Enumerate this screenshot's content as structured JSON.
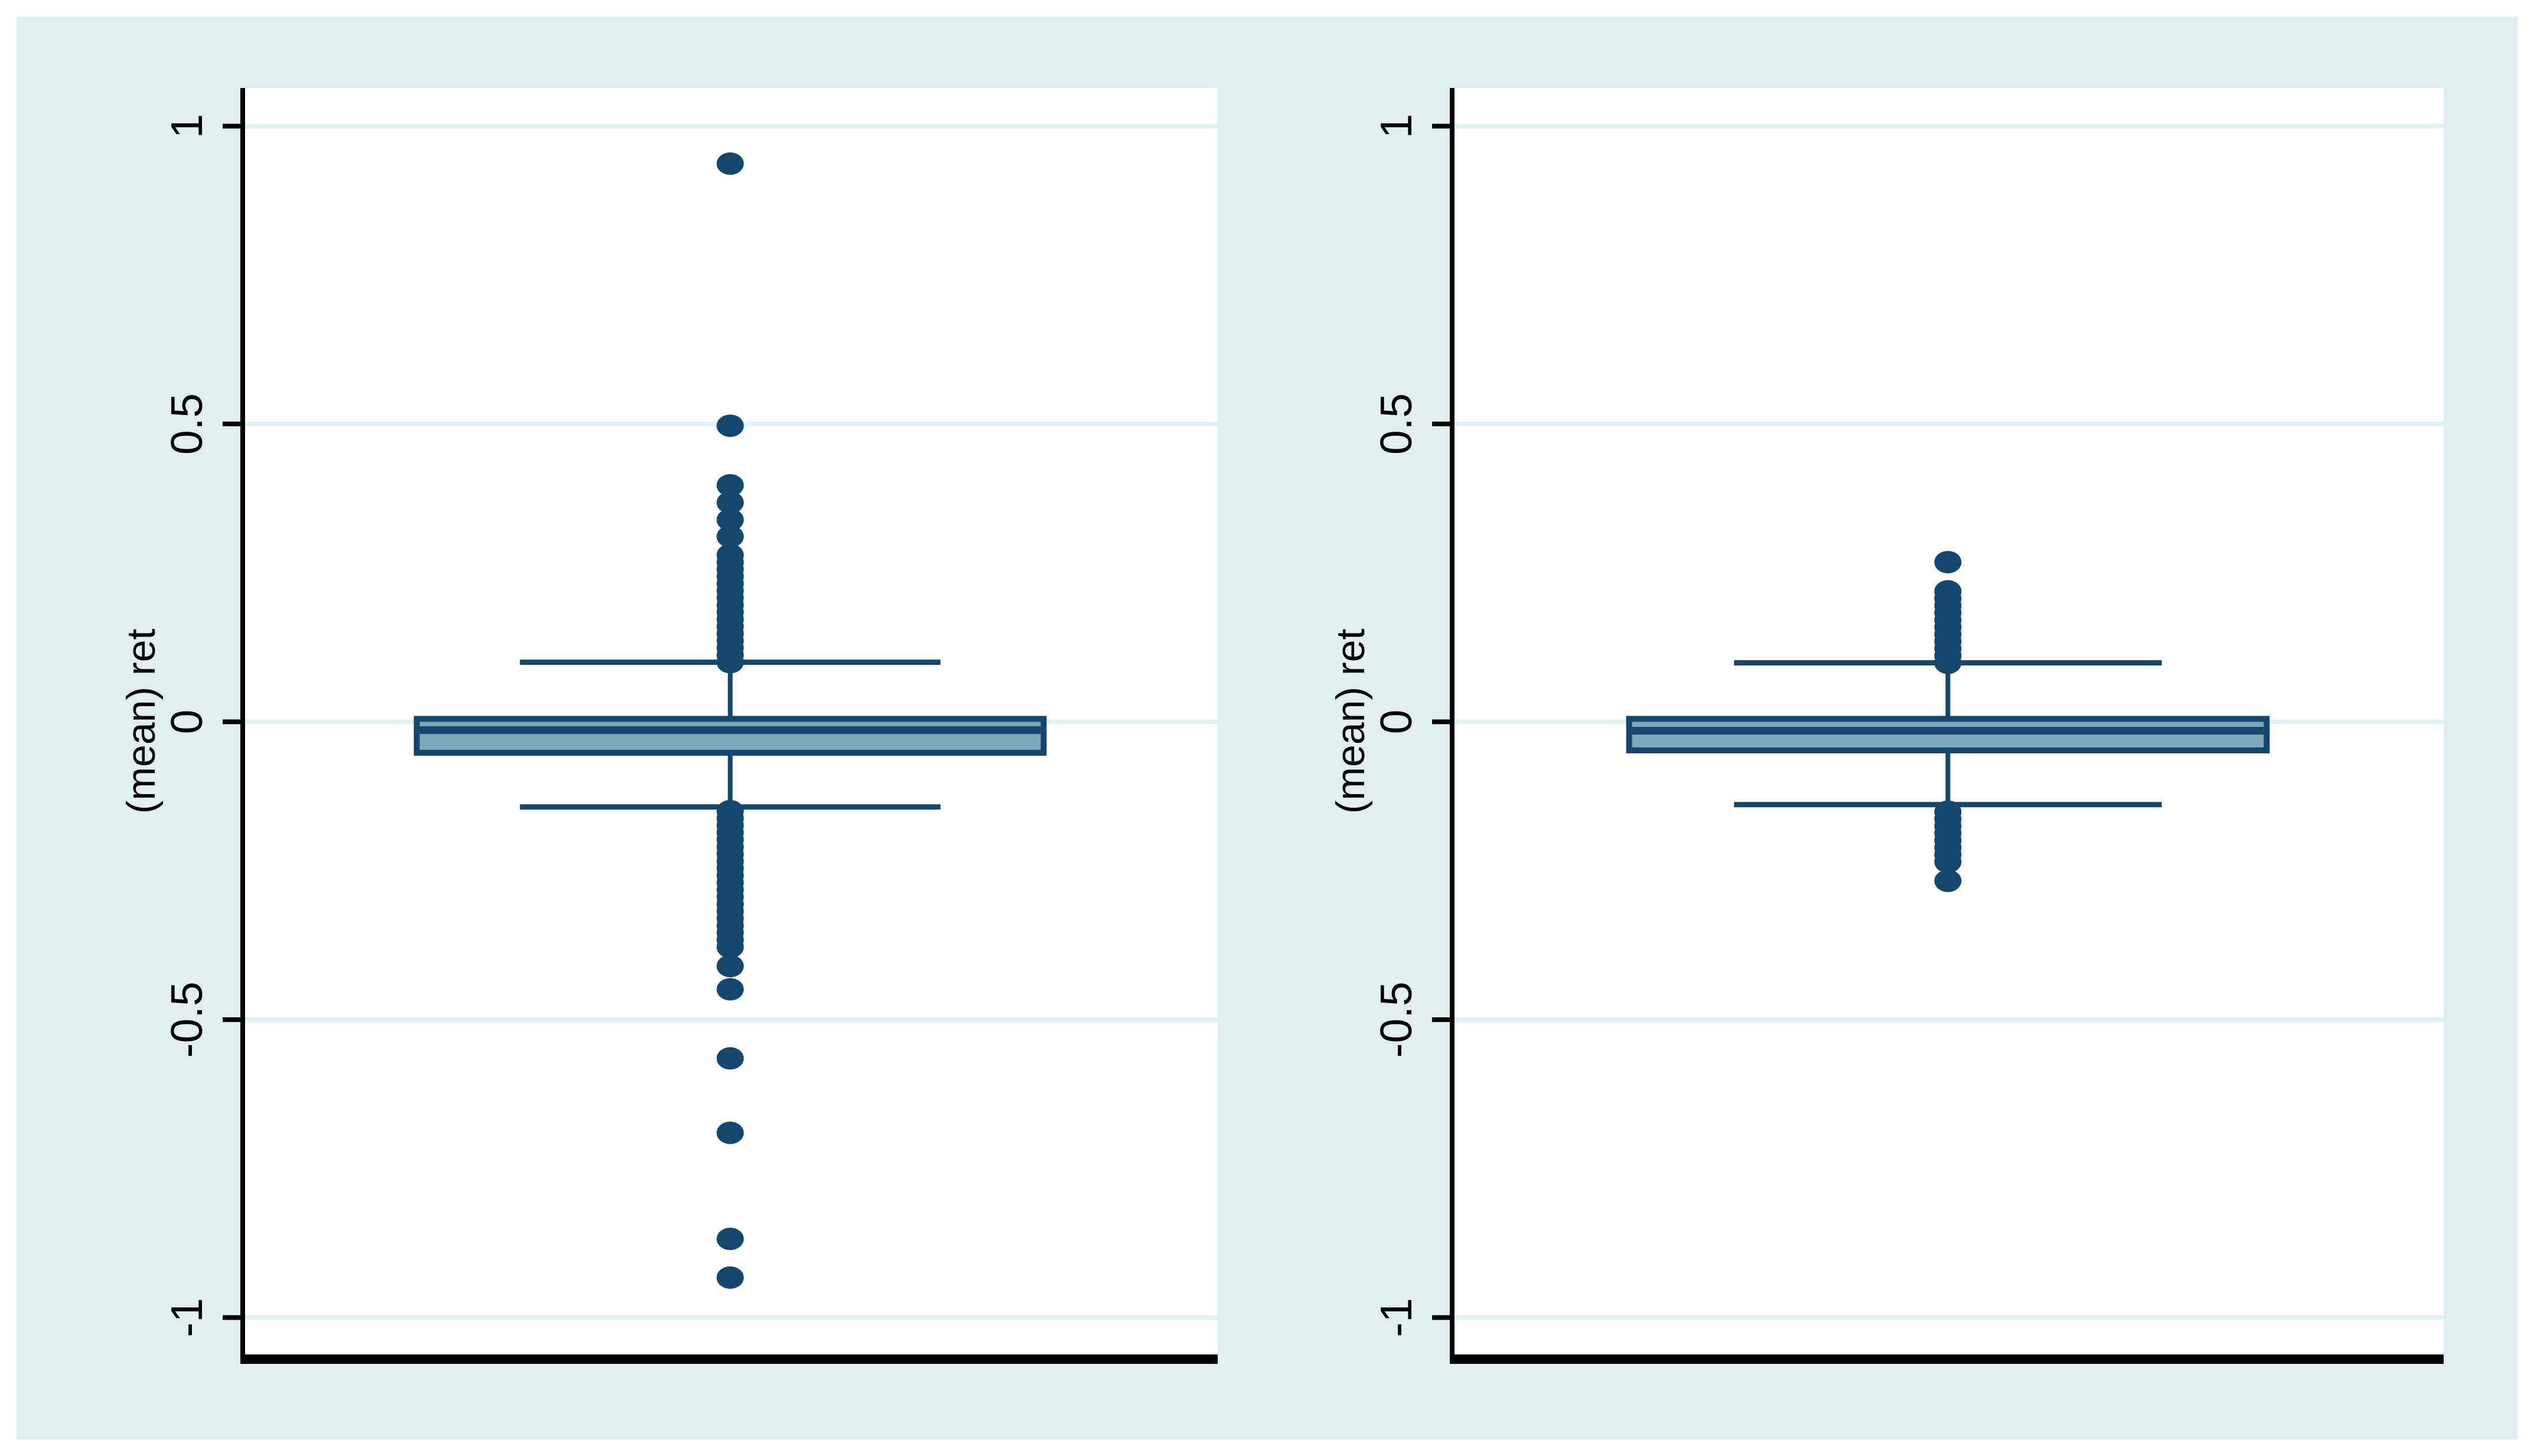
{
  "figure": {
    "kind": "stata-box-plot-figure",
    "colors": {
      "page_bg": "#ffffff",
      "region_bg": "#e0eef1",
      "plot_bg": "#ffffff",
      "grid": "#e2f2f4",
      "axis": "#000000",
      "text": "#000000",
      "box_fill": "#7da7bb",
      "navy": "#15466b"
    }
  },
  "chart_data": [
    {
      "type": "box",
      "panel": "left",
      "title": "",
      "xlabel": "",
      "ylabel": "(mean) ret",
      "ylim": [
        -1.062,
        1.064
      ],
      "grid": true,
      "legend": "none",
      "yticks": [
        {
          "value": 1,
          "label": "1"
        },
        {
          "value": 0.5,
          "label": "0.5"
        },
        {
          "value": 0,
          "label": "0"
        },
        {
          "value": -0.5,
          "label": "-0.5"
        },
        {
          "value": -1,
          "label": "-1"
        }
      ],
      "box": {
        "whisker_high": 0.1,
        "q3": 0.005,
        "median": -0.014,
        "q1": -0.052,
        "whisker_low": -0.143
      },
      "outliers": [
        0.937,
        0.497,
        0.397,
        0.368,
        0.339,
        0.311,
        -0.41,
        -0.449,
        -0.565,
        -0.69,
        -0.868,
        -0.933
      ],
      "outlier_bands": [
        {
          "from": 0.1,
          "to": 0.285
        },
        {
          "from": -0.378,
          "to": -0.148
        }
      ]
    },
    {
      "type": "box",
      "panel": "right",
      "title": "",
      "xlabel": "",
      "ylabel": "(mean) ret",
      "ylim": [
        -1.062,
        1.064
      ],
      "grid": true,
      "legend": "none",
      "yticks": [
        {
          "value": 1,
          "label": "1"
        },
        {
          "value": 0.5,
          "label": "0.5"
        },
        {
          "value": 0,
          "label": "0"
        },
        {
          "value": -0.5,
          "label": "-0.5"
        },
        {
          "value": -1,
          "label": "-1"
        }
      ],
      "box": {
        "whisker_high": 0.099,
        "q3": 0.005,
        "median": -0.015,
        "q1": -0.048,
        "whisker_low": -0.139
      },
      "outliers": [
        0.268,
        -0.267
      ],
      "outlier_bands": [
        {
          "from": 0.099,
          "to": 0.223
        },
        {
          "from": -0.235,
          "to": -0.145
        }
      ]
    }
  ]
}
